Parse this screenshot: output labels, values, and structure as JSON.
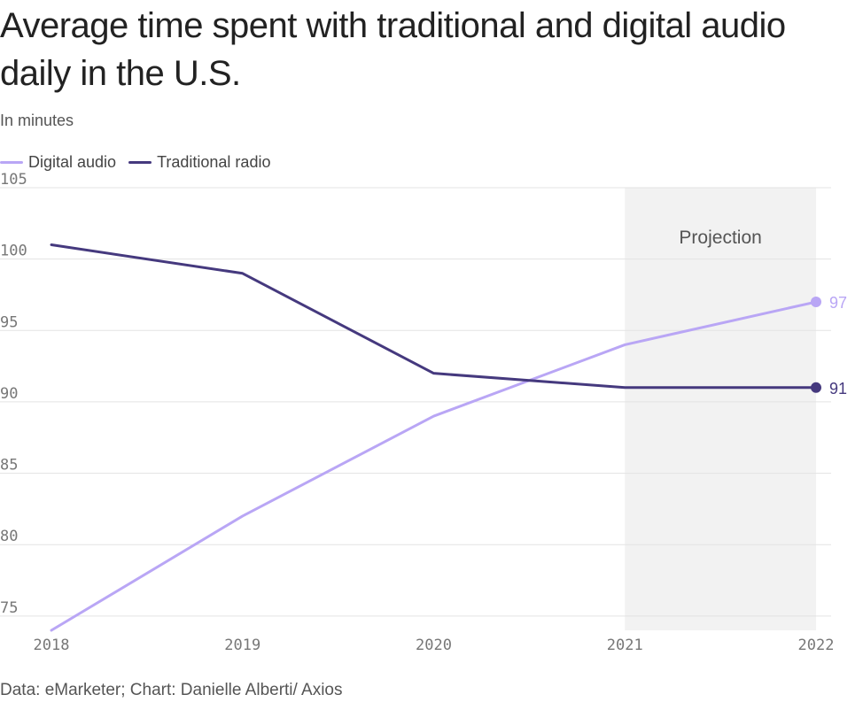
{
  "header": {
    "title": "Average time spent with traditional and digital audio daily in the U.S.",
    "subtitle": "In minutes"
  },
  "legend": {
    "items": [
      {
        "label": "Digital audio",
        "color": "#b9a6f5"
      },
      {
        "label": "Traditional radio",
        "color": "#45397e"
      }
    ]
  },
  "footer": {
    "source": "Data: eMarketer; Chart: Danielle Alberti/ Axios"
  },
  "chart_data": {
    "type": "line",
    "title": "Average time spent with traditional and digital audio daily in the U.S.",
    "ylabel": "In minutes",
    "xlabel": "",
    "categories": [
      "2018",
      "2019",
      "2020",
      "2021",
      "2022"
    ],
    "ylim": [
      74,
      105
    ],
    "yticks": [
      75,
      80,
      85,
      90,
      95,
      100,
      105
    ],
    "grid": true,
    "legend_position": "top-left",
    "series": [
      {
        "name": "Digital audio",
        "color": "#b9a6f5",
        "values": [
          74,
          82,
          89,
          94,
          97
        ],
        "end_label": "97"
      },
      {
        "name": "Traditional radio",
        "color": "#45397e",
        "values": [
          101,
          99,
          92,
          91,
          91
        ],
        "end_label": "91"
      }
    ],
    "projection": {
      "label": "Projection",
      "from": "2021",
      "to": "2022",
      "color": "#f2f2f2"
    }
  }
}
